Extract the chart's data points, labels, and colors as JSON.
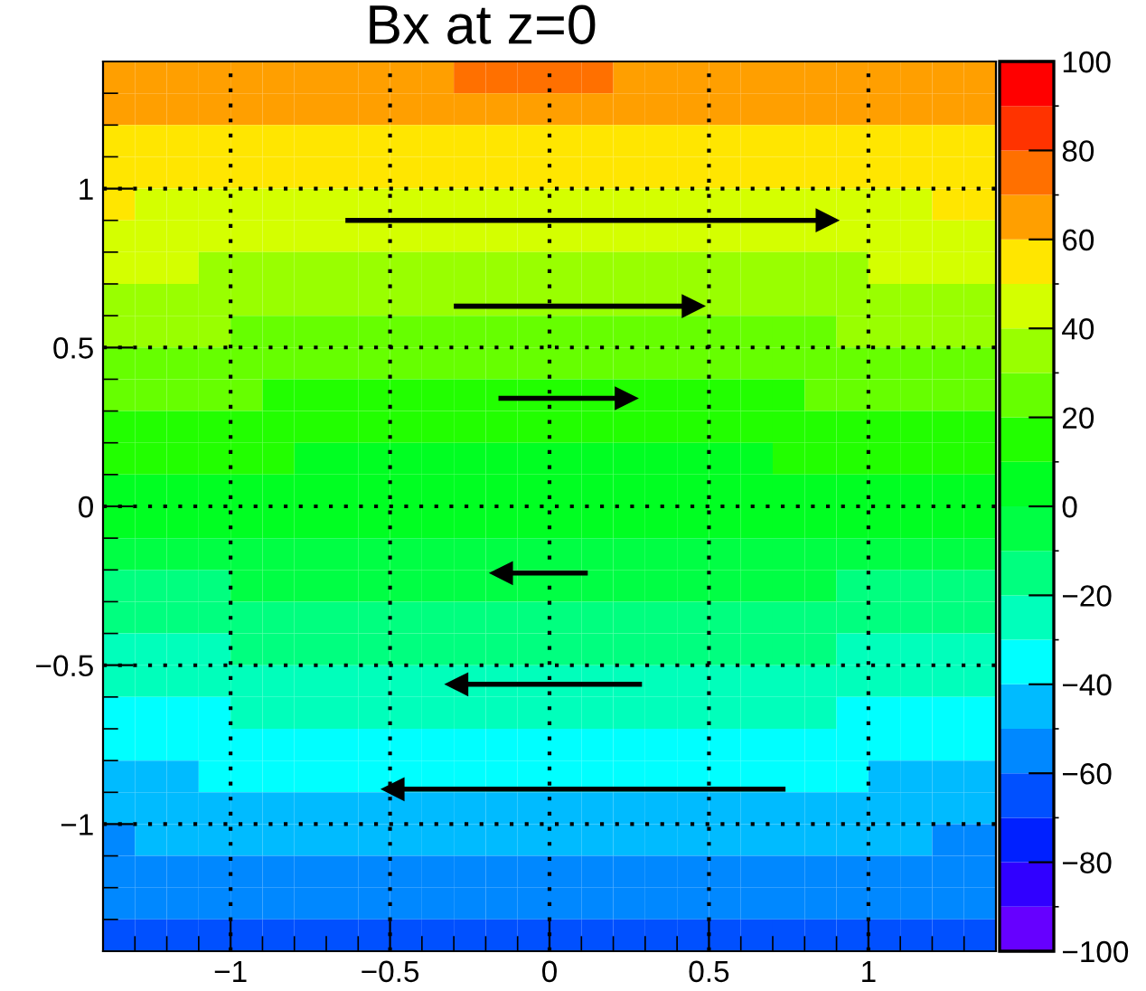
{
  "chart_data": {
    "type": "heatmap",
    "title": "Bx at z=0",
    "xlim": [
      -1.4,
      1.4
    ],
    "ylim": [
      -1.4,
      1.4
    ],
    "xticks": [
      -1,
      -0.5,
      0,
      0.5,
      1
    ],
    "yticks": [
      -1,
      -0.5,
      0,
      0.5,
      1
    ],
    "grid": true,
    "clim": [
      -100,
      100
    ],
    "cticks": [
      -100,
      -80,
      -60,
      -40,
      -20,
      0,
      20,
      40,
      60,
      80,
      100
    ],
    "colors": [
      "#6600ff",
      "#3000ff",
      "#0020ff",
      "#0050ff",
      "#0088ff",
      "#00bbff",
      "#00ffff",
      "#00ffbb",
      "#00ff7f",
      "#00ff44",
      "#00ff22",
      "#22ff00",
      "#66ff00",
      "#99ff00",
      "#d4ff00",
      "#ffe600",
      "#ff9f00",
      "#ff7000",
      "#ff3300",
      "#ff0000"
    ],
    "cells": [
      [
        65,
        65,
        65,
        65,
        65,
        65,
        65,
        65,
        65,
        65,
        65,
        75,
        75,
        75,
        75,
        75,
        65,
        65,
        65,
        65,
        65,
        65,
        65,
        65,
        65,
        65,
        65,
        65
      ],
      [
        65,
        65,
        65,
        65,
        65,
        65,
        65,
        65,
        65,
        65,
        65,
        65,
        65,
        65,
        65,
        65,
        65,
        65,
        65,
        65,
        65,
        65,
        65,
        65,
        65,
        65,
        65,
        65
      ],
      [
        55,
        55,
        55,
        55,
        55,
        55,
        55,
        55,
        55,
        55,
        55,
        55,
        55,
        55,
        55,
        55,
        55,
        55,
        55,
        55,
        55,
        55,
        55,
        55,
        55,
        55,
        55,
        55
      ],
      [
        55,
        55,
        55,
        55,
        55,
        55,
        55,
        55,
        55,
        55,
        55,
        55,
        55,
        55,
        55,
        55,
        55,
        55,
        55,
        55,
        55,
        55,
        55,
        55,
        55,
        55,
        55,
        55
      ],
      [
        55,
        45,
        45,
        45,
        45,
        45,
        45,
        45,
        45,
        45,
        45,
        45,
        45,
        45,
        45,
        45,
        45,
        45,
        45,
        45,
        45,
        45,
        45,
        45,
        45,
        45,
        55,
        55
      ],
      [
        45,
        45,
        45,
        45,
        45,
        45,
        45,
        45,
        45,
        45,
        45,
        45,
        45,
        45,
        45,
        45,
        45,
        45,
        45,
        45,
        45,
        45,
        45,
        45,
        45,
        45,
        45,
        45
      ],
      [
        45,
        45,
        45,
        35,
        35,
        35,
        35,
        35,
        35,
        35,
        35,
        35,
        35,
        35,
        35,
        35,
        35,
        35,
        35,
        35,
        35,
        35,
        35,
        35,
        45,
        45,
        45,
        45
      ],
      [
        35,
        35,
        35,
        35,
        35,
        35,
        35,
        35,
        35,
        35,
        35,
        35,
        35,
        35,
        35,
        35,
        35,
        35,
        35,
        35,
        35,
        35,
        35,
        35,
        35,
        35,
        35,
        35
      ],
      [
        35,
        35,
        35,
        35,
        25,
        25,
        25,
        25,
        25,
        25,
        25,
        25,
        25,
        25,
        25,
        25,
        25,
        25,
        25,
        25,
        25,
        25,
        25,
        35,
        35,
        35,
        35,
        35
      ],
      [
        25,
        25,
        25,
        25,
        25,
        25,
        25,
        25,
        25,
        25,
        25,
        25,
        25,
        25,
        25,
        25,
        25,
        25,
        25,
        25,
        25,
        25,
        25,
        25,
        25,
        25,
        25,
        25
      ],
      [
        25,
        25,
        25,
        25,
        25,
        15,
        15,
        15,
        15,
        15,
        15,
        15,
        15,
        15,
        15,
        15,
        15,
        15,
        15,
        15,
        15,
        15,
        25,
        25,
        25,
        25,
        25,
        25
      ],
      [
        15,
        15,
        15,
        15,
        15,
        15,
        15,
        15,
        15,
        15,
        15,
        15,
        15,
        15,
        15,
        15,
        15,
        15,
        15,
        15,
        15,
        15,
        15,
        15,
        15,
        15,
        15,
        15
      ],
      [
        15,
        15,
        15,
        15,
        15,
        15,
        5,
        5,
        5,
        5,
        5,
        5,
        5,
        5,
        5,
        5,
        5,
        5,
        5,
        5,
        5,
        15,
        15,
        15,
        15,
        15,
        15,
        15
      ],
      [
        5,
        5,
        5,
        5,
        5,
        5,
        5,
        5,
        5,
        5,
        5,
        5,
        5,
        5,
        5,
        5,
        5,
        5,
        5,
        5,
        5,
        5,
        5,
        5,
        5,
        5,
        5,
        5
      ],
      [
        5,
        5,
        5,
        5,
        5,
        5,
        5,
        5,
        5,
        5,
        5,
        5,
        5,
        5,
        5,
        5,
        5,
        5,
        5,
        5,
        5,
        5,
        5,
        5,
        5,
        5,
        5,
        5
      ],
      [
        -5,
        -5,
        -5,
        -5,
        -5,
        -5,
        -5,
        -5,
        -5,
        -5,
        -5,
        -5,
        -5,
        -5,
        -5,
        -5,
        -5,
        -5,
        -5,
        -5,
        -5,
        -5,
        -5,
        -5,
        -5,
        -5,
        -5,
        -5
      ],
      [
        -15,
        -15,
        -15,
        -15,
        -5,
        -5,
        -5,
        -5,
        -5,
        -5,
        -5,
        -5,
        -5,
        -5,
        -5,
        -5,
        -5,
        -5,
        -5,
        -5,
        -5,
        -5,
        -5,
        -15,
        -15,
        -15,
        -15,
        -15
      ],
      [
        -15,
        -15,
        -15,
        -15,
        -15,
        -15,
        -15,
        -15,
        -15,
        -15,
        -15,
        -15,
        -15,
        -15,
        -15,
        -15,
        -15,
        -15,
        -15,
        -15,
        -15,
        -15,
        -15,
        -15,
        -15,
        -15,
        -15,
        -15
      ],
      [
        -25,
        -25,
        -25,
        -25,
        -15,
        -15,
        -15,
        -15,
        -15,
        -15,
        -15,
        -15,
        -15,
        -15,
        -15,
        -15,
        -15,
        -15,
        -15,
        -15,
        -15,
        -15,
        -15,
        -25,
        -25,
        -25,
        -25,
        -25
      ],
      [
        -25,
        -25,
        -25,
        -25,
        -25,
        -25,
        -25,
        -25,
        -25,
        -25,
        -25,
        -25,
        -25,
        -25,
        -25,
        -25,
        -25,
        -25,
        -25,
        -25,
        -25,
        -25,
        -25,
        -25,
        -25,
        -25,
        -25,
        -25
      ],
      [
        -35,
        -35,
        -35,
        -35,
        -25,
        -25,
        -25,
        -25,
        -25,
        -25,
        -25,
        -25,
        -25,
        -25,
        -25,
        -25,
        -25,
        -25,
        -25,
        -25,
        -25,
        -25,
        -25,
        -35,
        -35,
        -35,
        -35,
        -35
      ],
      [
        -35,
        -35,
        -35,
        -35,
        -35,
        -35,
        -35,
        -35,
        -35,
        -35,
        -35,
        -35,
        -35,
        -35,
        -35,
        -35,
        -35,
        -35,
        -35,
        -35,
        -35,
        -35,
        -35,
        -35,
        -35,
        -35,
        -35,
        -35
      ],
      [
        -45,
        -45,
        -45,
        -35,
        -35,
        -35,
        -35,
        -35,
        -35,
        -35,
        -35,
        -35,
        -35,
        -35,
        -35,
        -35,
        -35,
        -35,
        -35,
        -35,
        -35,
        -35,
        -35,
        -35,
        -45,
        -45,
        -45,
        -45
      ],
      [
        -45,
        -45,
        -45,
        -45,
        -45,
        -45,
        -45,
        -45,
        -45,
        -45,
        -45,
        -45,
        -45,
        -45,
        -45,
        -45,
        -45,
        -45,
        -45,
        -45,
        -45,
        -45,
        -45,
        -45,
        -45,
        -45,
        -45,
        -45
      ],
      [
        -55,
        -45,
        -45,
        -45,
        -45,
        -45,
        -45,
        -45,
        -45,
        -45,
        -45,
        -45,
        -45,
        -45,
        -45,
        -45,
        -45,
        -45,
        -45,
        -45,
        -45,
        -45,
        -45,
        -45,
        -45,
        -45,
        -55,
        -55
      ],
      [
        -55,
        -55,
        -55,
        -55,
        -55,
        -55,
        -55,
        -55,
        -55,
        -55,
        -55,
        -55,
        -55,
        -55,
        -55,
        -55,
        -55,
        -55,
        -55,
        -55,
        -55,
        -55,
        -55,
        -55,
        -55,
        -55,
        -55,
        -55
      ],
      [
        -55,
        -55,
        -55,
        -55,
        -55,
        -55,
        -55,
        -55,
        -55,
        -55,
        -55,
        -55,
        -55,
        -55,
        -55,
        -55,
        -55,
        -55,
        -55,
        -55,
        -55,
        -55,
        -55,
        -55,
        -55,
        -55,
        -55,
        -55
      ],
      [
        -65,
        -65,
        -65,
        -65,
        -65,
        -65,
        -65,
        -65,
        -65,
        -65,
        -65,
        -65,
        -65,
        -65,
        -65,
        -65,
        -65,
        -65,
        -65,
        -65,
        -65,
        -65,
        -65,
        -65,
        -65,
        -65,
        -65,
        -65
      ]
    ],
    "series": [
      {
        "type": "line",
        "x": [
          -0.64,
          0.87
        ],
        "values": [
          0.9,
          0.9
        ]
      },
      {
        "type": "line",
        "x": [
          -0.3,
          0.45
        ],
        "values": [
          0.63,
          0.63
        ]
      },
      {
        "type": "line",
        "x": [
          -0.16,
          0.24
        ],
        "values": [
          0.34,
          0.34
        ]
      },
      {
        "type": "line",
        "x": [
          0.12,
          -0.15
        ],
        "values": [
          -0.21,
          -0.21
        ]
      },
      {
        "type": "line",
        "x": [
          0.29,
          -0.29
        ],
        "values": [
          -0.56,
          -0.56
        ]
      },
      {
        "type": "line",
        "x": [
          0.74,
          -0.49
        ],
        "values": [
          -0.89,
          -0.89
        ]
      }
    ]
  }
}
